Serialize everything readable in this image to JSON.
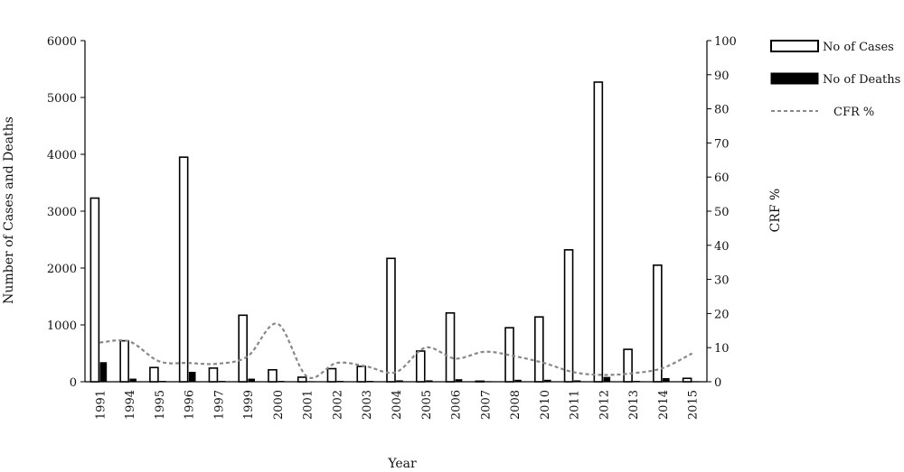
{
  "chart_data": {
    "type": "bar",
    "title": "",
    "xlabel": "Year",
    "ylabel": "Number of Cases and Deaths",
    "y2label": "CRF %",
    "ylim": [
      0,
      6000
    ],
    "y2lim": [
      0,
      100
    ],
    "yticks": [
      0,
      1000,
      2000,
      3000,
      4000,
      5000,
      6000
    ],
    "y2ticks": [
      0,
      10,
      20,
      30,
      40,
      50,
      60,
      70,
      80,
      90,
      100
    ],
    "grid": false,
    "legend_position": "top-right",
    "categories": [
      "1991",
      "1994",
      "1995",
      "1996",
      "1997",
      "1999",
      "2000",
      "2001",
      "2002",
      "2003",
      "2004",
      "2005",
      "2006",
      "2007",
      "2008",
      "2010",
      "2011",
      "2012",
      "2013",
      "2014",
      "2015"
    ],
    "series": [
      {
        "name": "No of Cases",
        "type": "bar",
        "axis": "left",
        "color": "#ffffff",
        "values": [
          3230,
          720,
          250,
          3950,
          240,
          1170,
          210,
          80,
          230,
          270,
          2170,
          540,
          1210,
          10,
          950,
          1140,
          2320,
          5270,
          570,
          2050,
          60
        ]
      },
      {
        "name": "No of Deaths",
        "type": "bar",
        "axis": "left",
        "color": "#000000",
        "values": [
          340,
          50,
          10,
          170,
          10,
          50,
          10,
          5,
          10,
          10,
          20,
          20,
          40,
          5,
          30,
          30,
          20,
          80,
          10,
          60,
          5
        ]
      },
      {
        "name": "CFR %",
        "type": "line",
        "axis": "right",
        "color": "#888888",
        "style": "dashed",
        "values": [
          11.5,
          11.8,
          6,
          5.5,
          5.3,
          7.5,
          17,
          1.5,
          5.5,
          4.5,
          2.8,
          10,
          6.8,
          8.8,
          7.5,
          5.5,
          2.8,
          2,
          2.5,
          4,
          8.3
        ]
      }
    ]
  }
}
